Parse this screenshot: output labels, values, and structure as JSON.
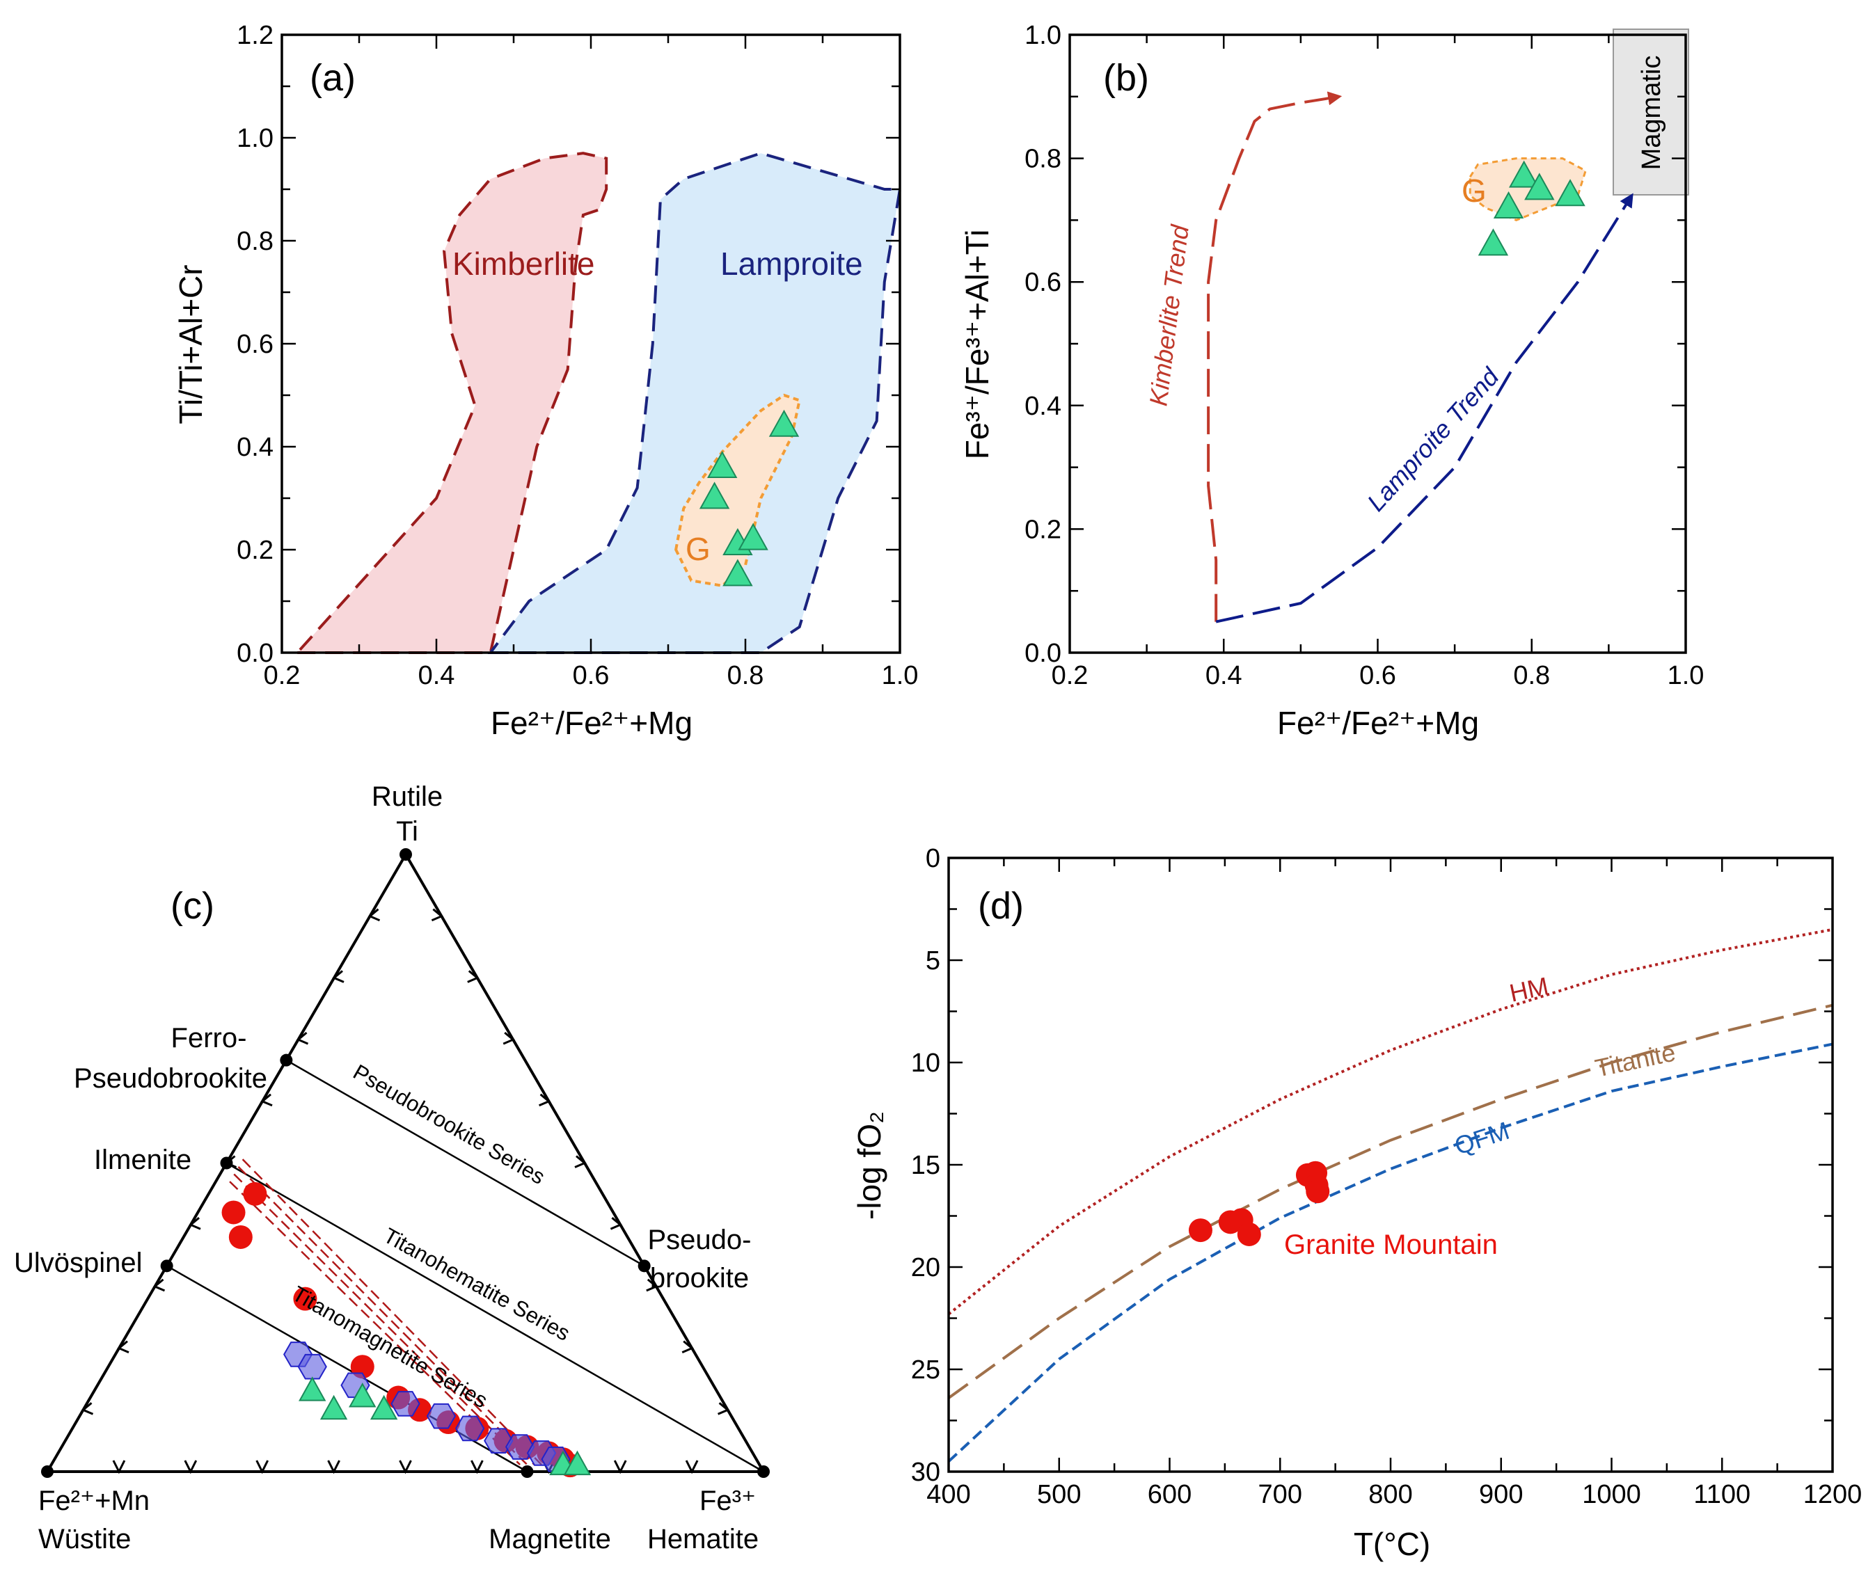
{
  "chart_data": [
    {
      "id": "a",
      "type": "scatter",
      "panel_label": "(a)",
      "xlabel": "Fe²⁺/Fe²⁺+Mg",
      "ylabel": "Ti/Ti+Al+Cr",
      "xlim": [
        0.2,
        1.0
      ],
      "ylim": [
        0.0,
        1.2
      ],
      "xticks": [
        "0.2",
        "0.4",
        "0.6",
        "0.8",
        "1.0"
      ],
      "yticks": [
        "0.0",
        "0.2",
        "0.4",
        "0.6",
        "0.8",
        "1.0",
        "1.2"
      ],
      "fields": [
        {
          "name": "Kimberlite",
          "fill": "#f8d7da",
          "stroke": "#9b1c1c",
          "polygon": [
            [
              0.22,
              0.0
            ],
            [
              0.47,
              0.0
            ],
            [
              0.53,
              0.4
            ],
            [
              0.57,
              0.55
            ],
            [
              0.58,
              0.75
            ],
            [
              0.59,
              0.85
            ],
            [
              0.61,
              0.86
            ],
            [
              0.62,
              0.9
            ],
            [
              0.62,
              0.96
            ],
            [
              0.59,
              0.97
            ],
            [
              0.54,
              0.96
            ],
            [
              0.47,
              0.92
            ],
            [
              0.43,
              0.85
            ],
            [
              0.41,
              0.78
            ],
            [
              0.42,
              0.62
            ],
            [
              0.45,
              0.48
            ],
            [
              0.4,
              0.3
            ]
          ]
        },
        {
          "name": "Lamproite",
          "fill": "#d8ebfa",
          "stroke": "#1a237e",
          "polygon": [
            [
              0.47,
              0.0
            ],
            [
              0.65,
              0.0
            ],
            [
              0.82,
              0.0
            ],
            [
              0.87,
              0.05
            ],
            [
              0.92,
              0.3
            ],
            [
              0.97,
              0.45
            ],
            [
              0.98,
              0.72
            ],
            [
              1.0,
              0.9
            ],
            [
              0.98,
              0.9
            ],
            [
              0.82,
              0.97
            ],
            [
              0.72,
              0.92
            ],
            [
              0.69,
              0.88
            ],
            [
              0.68,
              0.6
            ],
            [
              0.66,
              0.32
            ],
            [
              0.62,
              0.2
            ],
            [
              0.52,
              0.1
            ]
          ]
        },
        {
          "name": "G",
          "fill": "#fde5d0",
          "stroke": "#f39c35",
          "polygon": [
            [
              0.71,
              0.2
            ],
            [
              0.72,
              0.28
            ],
            [
              0.74,
              0.33
            ],
            [
              0.77,
              0.39
            ],
            [
              0.82,
              0.47
            ],
            [
              0.85,
              0.5
            ],
            [
              0.87,
              0.49
            ],
            [
              0.86,
              0.42
            ],
            [
              0.82,
              0.3
            ],
            [
              0.8,
              0.17
            ],
            [
              0.77,
              0.13
            ],
            [
              0.73,
              0.14
            ]
          ]
        }
      ],
      "field_labels": [
        "Kimberlite",
        "Lamproite",
        "G"
      ],
      "series": [
        {
          "name": "Granite Mountain",
          "marker": "triangle",
          "color": "#3ddb94",
          "x": [
            0.85,
            0.77,
            0.76,
            0.79,
            0.81,
            0.79
          ],
          "y": [
            0.44,
            0.36,
            0.3,
            0.21,
            0.22,
            0.15
          ]
        }
      ]
    },
    {
      "id": "b",
      "type": "line",
      "panel_label": "(b)",
      "xlabel": "Fe²⁺/Fe²⁺+Mg",
      "ylabel": "Fe³⁺/Fe³⁺+Al+Ti",
      "xlim": [
        0.2,
        1.0
      ],
      "ylim": [
        0.0,
        1.0
      ],
      "xticks": [
        "0.2",
        "0.4",
        "0.6",
        "0.8",
        "1.0"
      ],
      "yticks": [
        "0.0",
        "0.2",
        "0.4",
        "0.6",
        "0.8",
        "1.0"
      ],
      "magmatic_label": "Magmatic",
      "trends": [
        {
          "name": "Kimberlite Trend",
          "color": "#c0392b",
          "x": [
            0.39,
            0.39,
            0.38,
            0.38,
            0.38,
            0.39,
            0.42,
            0.44,
            0.46,
            0.5,
            0.55
          ],
          "y": [
            0.05,
            0.15,
            0.27,
            0.45,
            0.6,
            0.7,
            0.8,
            0.86,
            0.88,
            0.89,
            0.9
          ]
        },
        {
          "name": "Lamproite Trend",
          "color": "#0d1b8a",
          "x": [
            0.39,
            0.5,
            0.6,
            0.7,
            0.78,
            0.86,
            0.93
          ],
          "y": [
            0.05,
            0.08,
            0.17,
            0.3,
            0.47,
            0.6,
            0.74
          ]
        }
      ],
      "field": {
        "name": "G",
        "fill": "#fde5d0",
        "stroke": "#f39c35",
        "polygon": [
          [
            0.72,
            0.77
          ],
          [
            0.73,
            0.79
          ],
          [
            0.78,
            0.8
          ],
          [
            0.84,
            0.8
          ],
          [
            0.87,
            0.78
          ],
          [
            0.86,
            0.74
          ],
          [
            0.82,
            0.72
          ],
          [
            0.78,
            0.7
          ],
          [
            0.74,
            0.72
          ],
          [
            0.72,
            0.74
          ]
        ]
      },
      "series": [
        {
          "name": "Granite Mountain",
          "marker": "triangle",
          "color": "#3ddb94",
          "x": [
            0.79,
            0.81,
            0.85,
            0.77,
            0.75
          ],
          "y": [
            0.77,
            0.75,
            0.74,
            0.72,
            0.66
          ]
        }
      ]
    },
    {
      "id": "c",
      "type": "scatter",
      "panel_label": "(c)",
      "ternary": true,
      "vertices": {
        "top": {
          "name": "Rutile",
          "symbol": "Ti"
        },
        "left": {
          "symbol": "Fe²⁺+Mn",
          "name": "Wüstite"
        },
        "right": {
          "symbol": "Fe³⁺",
          "name": "Hematite"
        }
      },
      "minerals": [
        "Ferro-",
        "Pseudobrookite",
        "Ilmenite",
        "Ulvöspinel",
        "Pseudo-",
        "brookite",
        "Magnetite"
      ],
      "series_labels": [
        "Pseudobrookite Series",
        "Titanohematite Series",
        "Titanomagnetite Series"
      ],
      "series": [
        {
          "name": "red circles",
          "marker": "circle",
          "color": "#e8120c",
          "points_xy_fraction": [
            [
              0.29,
              0.45
            ],
            [
              0.26,
              0.42
            ],
            [
              0.27,
              0.38
            ],
            [
              0.36,
              0.28
            ],
            [
              0.44,
              0.17
            ],
            [
              0.49,
              0.12
            ],
            [
              0.52,
              0.1
            ],
            [
              0.56,
              0.08
            ],
            [
              0.6,
              0.07
            ],
            [
              0.64,
              0.05
            ],
            [
              0.67,
              0.04
            ],
            [
              0.7,
              0.03
            ],
            [
              0.72,
              0.02
            ],
            [
              0.73,
              0.01
            ]
          ]
        },
        {
          "name": "blue hexagons",
          "marker": "hexagon",
          "color": "#5c5ce0",
          "points_xy_fraction": [
            [
              0.35,
              0.19
            ],
            [
              0.37,
              0.17
            ],
            [
              0.43,
              0.14
            ],
            [
              0.5,
              0.11
            ],
            [
              0.55,
              0.09
            ],
            [
              0.59,
              0.07
            ],
            [
              0.63,
              0.05
            ],
            [
              0.66,
              0.04
            ],
            [
              0.69,
              0.03
            ],
            [
              0.71,
              0.02
            ]
          ]
        },
        {
          "name": "green triangles",
          "marker": "triangle",
          "color": "#3ddb94",
          "points_xy_fraction": [
            [
              0.37,
              0.13
            ],
            [
              0.4,
              0.1
            ],
            [
              0.44,
              0.12
            ],
            [
              0.47,
              0.1
            ],
            [
              0.72,
              0.01
            ],
            [
              0.74,
              0.01
            ]
          ]
        }
      ]
    },
    {
      "id": "d",
      "type": "line",
      "panel_label": "(d)",
      "xlabel": "T(°C)",
      "ylabel": "-log fO₂",
      "xlim": [
        400,
        1200
      ],
      "ylim": [
        30,
        0
      ],
      "xticks": [
        "400",
        "500",
        "600",
        "700",
        "800",
        "900",
        "1000",
        "1100",
        "1200"
      ],
      "yticks": [
        "0",
        "5",
        "10",
        "15",
        "20",
        "25",
        "30"
      ],
      "curves": [
        {
          "name": "HM",
          "color": "#b22222",
          "style": "dotted",
          "x": [
            400,
            500,
            600,
            700,
            800,
            900,
            1000,
            1100,
            1200
          ],
          "y": [
            22.3,
            18.0,
            14.6,
            11.8,
            9.4,
            7.4,
            5.7,
            4.5,
            3.5
          ]
        },
        {
          "name": "Titanite",
          "color": "#a0704a",
          "style": "dashed",
          "x": [
            400,
            500,
            600,
            700,
            800,
            900,
            1000,
            1100,
            1200
          ],
          "y": [
            26.4,
            22.5,
            19.0,
            16.2,
            13.8,
            11.8,
            10.0,
            8.5,
            7.2
          ]
        },
        {
          "name": "QFM",
          "color": "#1a5fb4",
          "style": "dashed",
          "x": [
            400,
            500,
            600,
            700,
            800,
            900,
            1000,
            1100,
            1200
          ],
          "y": [
            29.5,
            24.5,
            20.6,
            17.6,
            15.2,
            13.2,
            11.4,
            10.2,
            9.1
          ]
        }
      ],
      "series": [
        {
          "name": "Granite Mountain",
          "marker": "circle",
          "color": "#e8120c",
          "x": [
            628,
            655,
            665,
            672,
            725,
            732,
            733,
            734
          ],
          "y": [
            18.2,
            17.8,
            17.7,
            18.4,
            15.5,
            15.4,
            16.0,
            16.3
          ]
        }
      ]
    }
  ]
}
